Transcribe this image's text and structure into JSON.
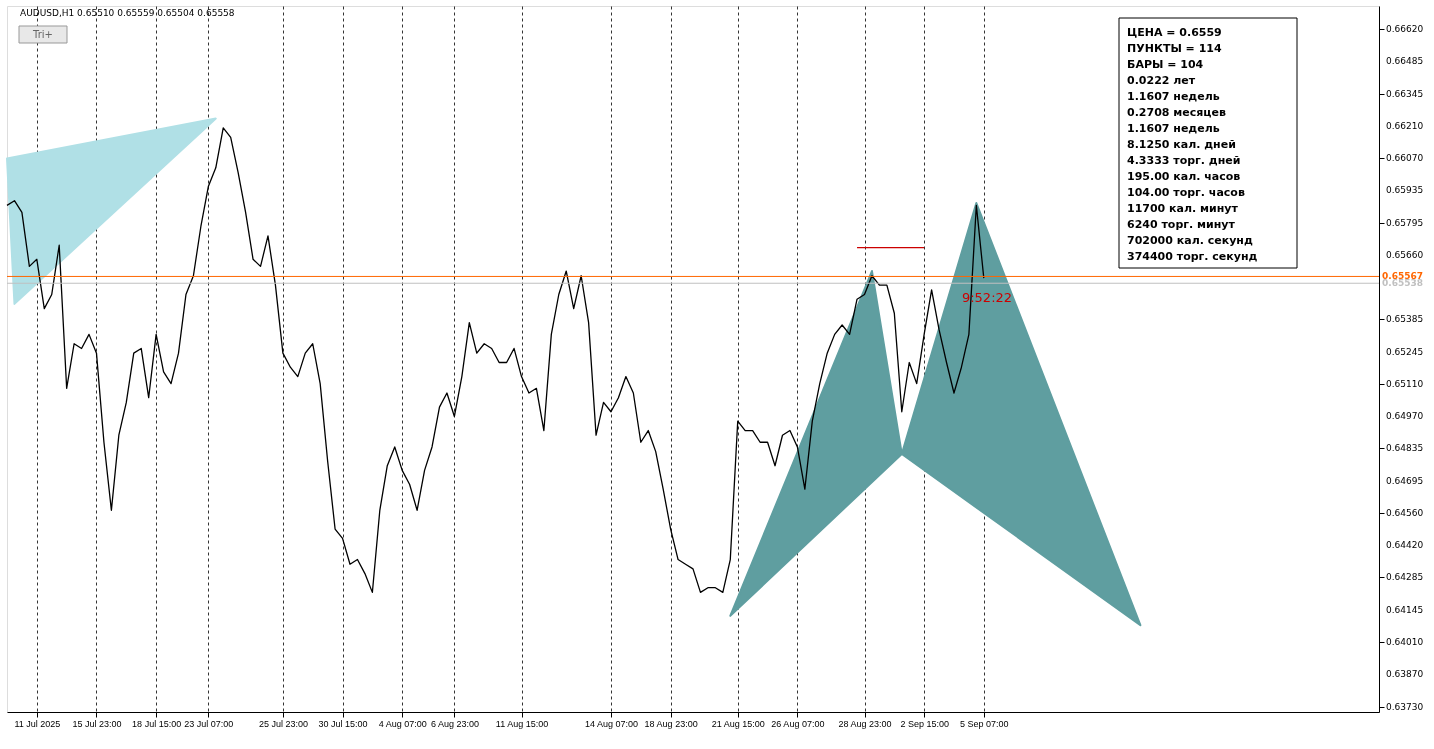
{
  "chart_data": {
    "type": "line",
    "title": "AUDUSD,H1  0.65510 0.65559 0.65504 0.65558",
    "categories": [
      null,
      null,
      null,
      null,
      "11 Jul 2025",
      null,
      null,
      null,
      null,
      null,
      null,
      null,
      "15 Jul 23:00",
      null,
      null,
      null,
      null,
      null,
      null,
      null,
      "18 Jul 15:00",
      null,
      null,
      null,
      null,
      null,
      null,
      "23 Jul 07:00",
      null,
      null,
      null,
      null,
      null,
      null,
      null,
      null,
      null,
      "25 Jul 23:00",
      null,
      null,
      null,
      null,
      null,
      null,
      null,
      "30 Jul 15:00",
      null,
      null,
      null,
      null,
      null,
      null,
      null,
      "4 Aug 07:00",
      null,
      null,
      null,
      null,
      null,
      null,
      "6 Aug 23:00",
      null,
      null,
      null,
      null,
      null,
      null,
      null,
      null,
      "11 Aug 15:00",
      null,
      null,
      null,
      null,
      null,
      null,
      null,
      null,
      null,
      null,
      null,
      "14 Aug 07:00",
      null,
      null,
      null,
      null,
      null,
      null,
      null,
      "18 Aug 23:00",
      null,
      null,
      null,
      null,
      null,
      null,
      null,
      null,
      "21 Aug 15:00",
      null,
      null,
      null,
      null,
      null,
      null,
      null,
      "26 Aug 07:00",
      null,
      null,
      null,
      null,
      null,
      null,
      null,
      null,
      "28 Aug 23:00",
      null,
      null,
      null,
      null,
      null,
      null,
      null,
      "2 Sep 15:00",
      null,
      null,
      null,
      null,
      null,
      null,
      null,
      "5 Sep 07:00",
      null,
      null,
      null,
      null,
      null,
      null,
      null,
      null,
      null,
      null,
      null,
      null,
      null,
      null,
      null,
      null,
      null,
      null,
      null,
      null,
      null,
      null,
      null,
      null,
      null,
      null,
      null,
      null,
      null,
      null,
      null,
      null,
      null,
      null,
      null,
      null,
      null,
      null,
      null,
      null,
      null,
      null,
      null,
      null,
      null,
      null,
      null,
      null,
      null,
      null,
      null,
      null,
      null
    ],
    "ylim": [
      0.6371,
      0.6672
    ],
    "yticks": [
      {
        "value": 0.6662,
        "label": "0.66620"
      },
      {
        "value": 0.66485,
        "label": "0.66485"
      },
      {
        "value": 0.66345,
        "label": "0.66345"
      },
      {
        "value": 0.6621,
        "label": "0.66210"
      },
      {
        "value": 0.6607,
        "label": "0.66070"
      },
      {
        "value": 0.65935,
        "label": "0.65935"
      },
      {
        "value": 0.65795,
        "label": "0.65795"
      },
      {
        "value": 0.6566,
        "label": "0.65660"
      },
      {
        "value": 0.65385,
        "label": "0.65385"
      },
      {
        "value": 0.65245,
        "label": "0.65245"
      },
      {
        "value": 0.6511,
        "label": "0.65110"
      },
      {
        "value": 0.6497,
        "label": "0.64970"
      },
      {
        "value": 0.64835,
        "label": "0.64835"
      },
      {
        "value": 0.64695,
        "label": "0.64695"
      },
      {
        "value": 0.6456,
        "label": "0.64560"
      },
      {
        "value": 0.6442,
        "label": "0.64420"
      },
      {
        "value": 0.64285,
        "label": "0.64285"
      },
      {
        "value": 0.64145,
        "label": "0.64145"
      },
      {
        "value": 0.6401,
        "label": "0.64010"
      },
      {
        "value": 0.6387,
        "label": "0.63870"
      },
      {
        "value": 0.6373,
        "label": "0.63730"
      }
    ],
    "grid": "x",
    "marker": "none",
    "line_style": "solid",
    "series": [
      {
        "color": "#000000",
        "values": [
          0.6587,
          0.6589,
          0.6584,
          0.6561,
          0.6564,
          0.6543,
          0.6549,
          0.657,
          0.6509,
          0.6528,
          0.6526,
          0.6532,
          0.6524,
          0.6486,
          0.6457,
          0.6489,
          0.6503,
          0.6524,
          0.6526,
          0.6505,
          0.6532,
          0.6516,
          0.6511,
          0.6524,
          0.6549,
          0.6557,
          0.6578,
          0.6595,
          0.6603,
          0.662,
          0.6616,
          0.6601,
          0.6584,
          0.6564,
          0.6561,
          0.6574,
          0.6553,
          0.6524,
          0.6518,
          0.6514,
          0.6524,
          0.6528,
          0.6511,
          0.6478,
          0.6449,
          0.6445,
          0.6434,
          0.6436,
          0.643,
          0.6422,
          0.6457,
          0.6476,
          0.6484,
          0.6474,
          0.6468,
          0.6457,
          0.6474,
          0.6484,
          0.6501,
          0.6507,
          0.6497,
          0.6514,
          0.6537,
          0.6524,
          0.6528,
          0.6526,
          0.652,
          0.652,
          0.6526,
          0.6514,
          0.6507,
          0.6509,
          0.6491,
          0.6532,
          0.6549,
          0.6559,
          0.6543,
          0.6557,
          0.6537,
          0.6489,
          0.6503,
          0.6499,
          0.6505,
          0.6514,
          0.6507,
          0.6486,
          0.6491,
          0.6482,
          0.6466,
          0.6449,
          0.6436,
          0.6434,
          0.6432,
          0.6422,
          0.6424,
          0.6424,
          0.6422,
          0.6436,
          0.6495,
          0.6491,
          0.6491,
          0.6486,
          0.6486,
          0.6476,
          0.6489,
          0.6491,
          0.6484,
          0.6466,
          0.6495,
          0.6511,
          0.6524,
          0.6532,
          0.6536,
          0.6532,
          0.6547,
          0.6549,
          0.6557,
          0.6553,
          0.6553,
          0.6541,
          0.6499,
          0.652,
          0.6511,
          0.6532,
          0.6551,
          0.6534,
          0.652,
          0.6507,
          0.6518,
          0.6532,
          0.6587,
          0.6556,
          null,
          null,
          null,
          null,
          null,
          null,
          null,
          null,
          null,
          null,
          null,
          null,
          null,
          null,
          null,
          null,
          null,
          null,
          null,
          null,
          null,
          null,
          null,
          null,
          null,
          null,
          null,
          null,
          null,
          null,
          null,
          null,
          null,
          null,
          null,
          null,
          null,
          null,
          null,
          null,
          null,
          null,
          null,
          null,
          null,
          null,
          null,
          null,
          null,
          null,
          null,
          null,
          null
        ]
      },
      {
        "type": "area",
        "color": "#b0e0e6",
        "values": [
          0.6607,
          0.6545,
          null,
          null,
          null,
          null,
          null,
          null,
          null,
          null,
          null,
          null,
          null,
          null,
          null,
          null,
          null,
          null,
          null,
          null,
          null,
          null,
          null,
          null,
          null,
          null,
          null,
          null,
          0.6624,
          null,
          null,
          null,
          null,
          null,
          null,
          null,
          null,
          null,
          null,
          null,
          null,
          null,
          null,
          null,
          null,
          null,
          null,
          null,
          null,
          null,
          null,
          null,
          null,
          null,
          null,
          null,
          null,
          null,
          null,
          null,
          null,
          null,
          null,
          null,
          null,
          null,
          null,
          null,
          null,
          null,
          null,
          null,
          null,
          null,
          null,
          null,
          null,
          null,
          null,
          null,
          null,
          null,
          null,
          null,
          null,
          null,
          null,
          null,
          null,
          null,
          null,
          null,
          null,
          null,
          null,
          null,
          null,
          null,
          null,
          null,
          null,
          null,
          null,
          null,
          null,
          null,
          null,
          null,
          null,
          null,
          null,
          null,
          null,
          null,
          null,
          null,
          null,
          null,
          null,
          null,
          null,
          null,
          null,
          null,
          null,
          null,
          null,
          null,
          null,
          null,
          null,
          null,
          null,
          null,
          null,
          null,
          null,
          null,
          null,
          null,
          null,
          null,
          null,
          null,
          null,
          null,
          null,
          null,
          null,
          null,
          null,
          null,
          null,
          null,
          null,
          null,
          null,
          null,
          null,
          null,
          null,
          null,
          null,
          null,
          null,
          null,
          null,
          null,
          null,
          null,
          null,
          null,
          null,
          null,
          null,
          null,
          null,
          null,
          null,
          null,
          null,
          null,
          null,
          null,
          null
        ]
      },
      {
        "type": "area",
        "color": "#5f9ea0",
        "values": [
          null,
          null,
          null,
          null,
          null,
          null,
          null,
          null,
          null,
          null,
          null,
          null,
          null,
          null,
          null,
          null,
          null,
          null,
          null,
          null,
          null,
          null,
          null,
          null,
          null,
          null,
          null,
          null,
          null,
          null,
          null,
          null,
          null,
          null,
          null,
          null,
          null,
          null,
          null,
          null,
          null,
          null,
          null,
          null,
          null,
          null,
          null,
          null,
          null,
          null,
          null,
          null,
          null,
          null,
          null,
          null,
          null,
          null,
          null,
          null,
          null,
          null,
          null,
          null,
          null,
          null,
          null,
          null,
          null,
          null,
          null,
          null,
          null,
          null,
          null,
          null,
          null,
          null,
          null,
          null,
          null,
          null,
          null,
          null,
          null,
          null,
          null,
          null,
          null,
          null,
          null,
          null,
          null,
          null,
          null,
          null,
          null,
          0.6412,
          null,
          null,
          null,
          null,
          null,
          null,
          null,
          null,
          null,
          null,
          null,
          null,
          null,
          null,
          null,
          null,
          null,
          null,
          0.6559,
          null,
          null,
          null,
          0.6481,
          null,
          null,
          null,
          null,
          null,
          null,
          null,
          null,
          null,
          null,
          null,
          null,
          null,
          null,
          null,
          null,
          null,
          null,
          null,
          null,
          null,
          null,
          null,
          null,
          null,
          null,
          null,
          null,
          null,
          null,
          null,
          null,
          null,
          null,
          null,
          null,
          null,
          null,
          null,
          null,
          null,
          null,
          null,
          null,
          null,
          null,
          null,
          null,
          null,
          null,
          null,
          null,
          null,
          null,
          null,
          null,
          null,
          null,
          null,
          null,
          null,
          null,
          null,
          null
        ]
      },
      {
        "type": "area",
        "color": "#5f9ea0",
        "values": [
          null,
          null,
          null,
          null,
          null,
          null,
          null,
          null,
          null,
          null,
          null,
          null,
          null,
          null,
          null,
          null,
          null,
          null,
          null,
          null,
          null,
          null,
          null,
          null,
          null,
          null,
          null,
          null,
          null,
          null,
          null,
          null,
          null,
          null,
          null,
          null,
          null,
          null,
          null,
          null,
          null,
          null,
          null,
          null,
          null,
          null,
          null,
          null,
          null,
          null,
          null,
          null,
          null,
          null,
          null,
          null,
          null,
          null,
          null,
          null,
          null,
          null,
          null,
          null,
          null,
          null,
          null,
          null,
          null,
          null,
          null,
          null,
          null,
          null,
          null,
          null,
          null,
          null,
          null,
          null,
          null,
          null,
          null,
          null,
          null,
          null,
          null,
          null,
          null,
          null,
          null,
          null,
          null,
          null,
          null,
          null,
          null,
          null,
          null,
          null,
          null,
          null,
          null,
          null,
          null,
          null,
          null,
          null,
          null,
          null,
          null,
          null,
          null,
          null,
          null,
          null,
          null,
          null,
          null,
          null,
          0.6481,
          null,
          null,
          null,
          null,
          null,
          null,
          null,
          null,
          null,
          0.6588,
          null,
          null,
          null,
          null,
          null,
          null,
          null,
          null,
          null,
          null,
          null,
          null,
          null,
          null,
          null,
          null,
          null,
          null,
          null,
          null,
          null,
          0.6408,
          null,
          null,
          null,
          null,
          null,
          null,
          null,
          null,
          null,
          null,
          null,
          null,
          null,
          null,
          null,
          null,
          null,
          null,
          null,
          null,
          null,
          null,
          null,
          null,
          null,
          null,
          null,
          null,
          null,
          null,
          null,
          null
        ]
      },
      {
        "type": "line",
        "color": "#cc0000",
        "values": [
          null,
          null,
          null,
          null,
          null,
          null,
          null,
          null,
          null,
          null,
          null,
          null,
          null,
          null,
          null,
          null,
          null,
          null,
          null,
          null,
          null,
          null,
          null,
          null,
          null,
          null,
          null,
          null,
          null,
          null,
          null,
          null,
          null,
          null,
          null,
          null,
          null,
          null,
          null,
          null,
          null,
          null,
          null,
          null,
          null,
          null,
          null,
          null,
          null,
          null,
          null,
          null,
          null,
          null,
          null,
          null,
          null,
          null,
          null,
          null,
          null,
          null,
          null,
          null,
          null,
          null,
          null,
          null,
          null,
          null,
          null,
          null,
          null,
          null,
          null,
          null,
          null,
          null,
          null,
          null,
          null,
          null,
          null,
          null,
          null,
          null,
          null,
          null,
          null,
          null,
          null,
          null,
          null,
          null,
          null,
          null,
          null,
          null,
          null,
          null,
          null,
          null,
          null,
          null,
          null,
          null,
          null,
          null,
          null,
          null,
          null,
          null,
          null,
          null,
          0.6569,
          null,
          null,
          null,
          null,
          null,
          null,
          null,
          null,
          0.6569,
          null,
          null,
          null,
          null,
          null,
          null,
          null,
          null,
          null,
          null,
          null,
          null,
          null,
          null,
          null,
          null,
          null,
          null,
          null,
          null,
          null,
          null,
          null,
          null,
          null,
          null,
          null,
          null,
          null,
          null,
          null,
          null,
          null,
          null,
          null,
          null,
          null,
          null,
          null,
          null,
          null,
          null,
          null,
          null,
          null,
          null,
          null,
          null,
          null,
          null,
          null,
          null,
          null,
          null,
          null,
          null,
          null,
          null,
          null,
          null,
          null
        ]
      }
    ],
    "ref_lines": [
      {
        "axis": "y",
        "value": 0.65567,
        "label": "0.65567",
        "color": "#ff6600"
      },
      {
        "axis": "y",
        "value": 0.65538,
        "label": "0.65538",
        "color": "#c0c0c0"
      }
    ],
    "annotations": [
      "Tri+",
      "ЦЕНА = 0.6559",
      "ПУНКТЫ = 114",
      "БАРЫ = 104",
      "0.0222 лет",
      "1.1607 недель",
      "0.2708 месяцев",
      "1.1607 недель",
      "8.1250 кал. дней",
      "4.3333 торг. дней",
      "195.00 кал. часов",
      "104.00 торг. часов",
      "11700 кал. минут",
      "6240 торг. минут",
      "702000 кал. секунд",
      "374400 торг. секунд",
      "9:52:22"
    ]
  }
}
